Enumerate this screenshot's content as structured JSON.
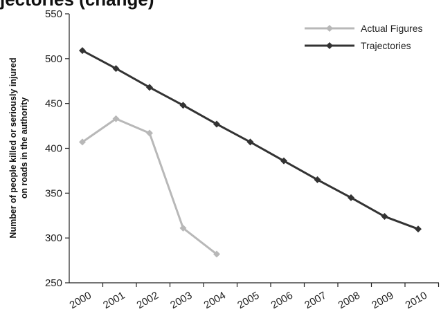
{
  "title_fragment": "jectories (change)",
  "chart_data": {
    "type": "line",
    "title": "",
    "xlabel": "",
    "ylabel": "Number of people killed or seriously injured on roads in the authority",
    "ylabel_lines": [
      "Number of people killed or seriously injured",
      "on roads in the authority"
    ],
    "ylim": [
      250,
      550
    ],
    "yticks": [
      250,
      300,
      350,
      400,
      450,
      500,
      550
    ],
    "categories": [
      "2000",
      "2001",
      "2002",
      "2003",
      "2004",
      "2005",
      "2006",
      "2007",
      "2008",
      "2009",
      "2010"
    ],
    "legend_position": "top-right",
    "grid": false,
    "series": [
      {
        "name": "Actual Figures",
        "color": "#b8b8b8",
        "values": [
          407,
          433,
          417,
          311,
          282,
          null,
          null,
          null,
          null,
          null,
          null
        ]
      },
      {
        "name": "Trajectories",
        "color": "#333333",
        "values": [
          509,
          489,
          468,
          448,
          427,
          407,
          386,
          365,
          345,
          324,
          310
        ]
      }
    ]
  }
}
